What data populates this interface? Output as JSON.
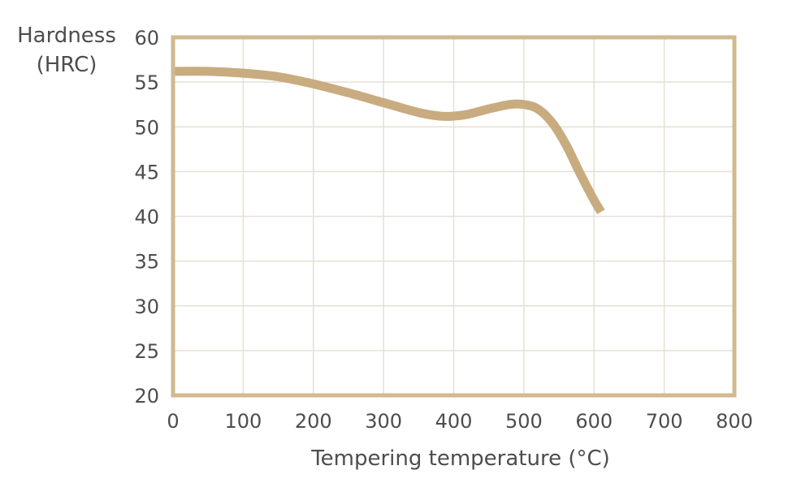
{
  "chart_data": {
    "type": "line",
    "title": "",
    "xlabel": "Tempering temperature (°C)",
    "ylabel_lines": [
      "Hardness",
      "(HRC)"
    ],
    "xlim": [
      0,
      800
    ],
    "ylim": [
      20,
      60
    ],
    "x_ticks": [
      0,
      100,
      200,
      300,
      400,
      500,
      600,
      700,
      800
    ],
    "y_ticks": [
      20,
      25,
      30,
      35,
      40,
      45,
      50,
      55,
      60
    ],
    "x_tick_labels": [
      "0",
      "100",
      "200",
      "300",
      "400",
      "500",
      "600",
      "700",
      "800"
    ],
    "y_tick_labels": [
      "20",
      "25",
      "30",
      "35",
      "40",
      "45",
      "50",
      "55",
      "60"
    ],
    "grid": true,
    "series": [
      {
        "name": "Hardness",
        "color": "#c9ab80",
        "x": [
          0,
          50,
          100,
          150,
          200,
          250,
          300,
          350,
          380,
          400,
          420,
          450,
          480,
          500,
          520,
          540,
          560,
          580,
          600,
          610
        ],
        "y": [
          56.2,
          56.2,
          56.0,
          55.6,
          54.8,
          53.8,
          52.7,
          51.6,
          51.2,
          51.2,
          51.4,
          52.0,
          52.5,
          52.5,
          52.0,
          50.5,
          48.0,
          44.8,
          41.8,
          40.5
        ]
      }
    ],
    "colors": {
      "frame": "#d2b98f",
      "grid": "#e6e0d3",
      "text": "#4d4d4d"
    }
  }
}
